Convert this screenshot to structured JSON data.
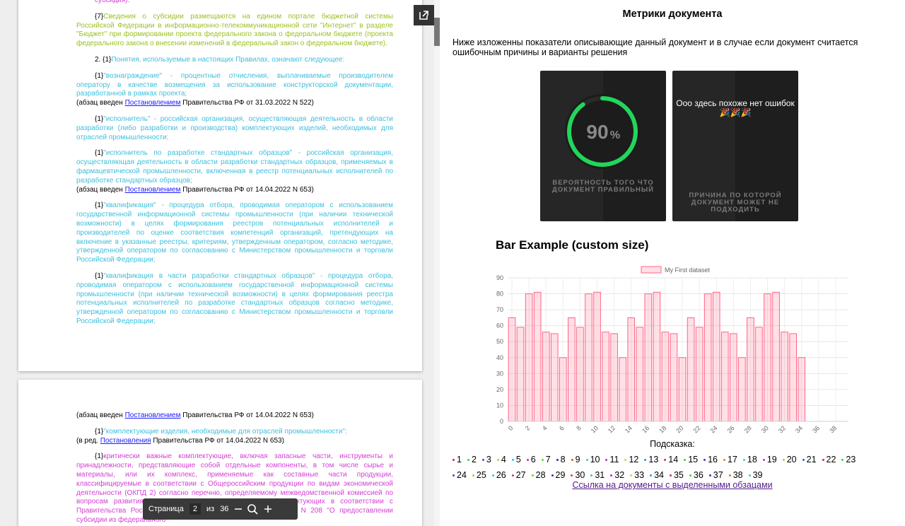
{
  "viewer": {
    "toolbar": {
      "page_label": "Страница",
      "page": "2",
      "of": "из",
      "total": "36"
    },
    "pages": [
      {
        "blocks": [
          {
            "prefix": "",
            "text": "субсидия).",
            "color": "#d43fd4"
          },
          {
            "prefix": "{7}",
            "text": "Сведения о субсидии размещаются на едином портале бюджетной системы Российской Федерации в информационно-телекоммуникационной сети \"Интернет\" в разделе \"Бюджет\" при формировании проекта федерального закона о федеральном бюджете (проекта федерального закона о внесении изменений в федеральный закон о федеральном бюджете).",
            "color": "#98c21f"
          },
          {
            "prefix": "2. {1}",
            "text": "Понятия, используемые в настоящих Правилах, означают следующее:",
            "color": "#3cbfdc"
          },
          {
            "prefix": "{1}",
            "text": "\"вознаграждение\" - процентные отчисления, выплачиваемые производителем оператору в качестве возмещения за использование конструкторской документации, разработанной в рамках проекта;",
            "color": "#3cbfdc"
          },
          {
            "note": [
              "(абзац введен ",
              "Постановлением",
              " Правительства РФ от 31.03.2022 N 522)"
            ]
          },
          {
            "prefix": "{1}",
            "text": "\"исполнитель\" - российская организация, осуществляющая деятельность в области разработки (либо разработки и производства) комплектующих изделий, необходимых для отраслей промышленности;",
            "color": "#3cbfdc"
          },
          {
            "prefix": "{1}",
            "text": "\"исполнитель по разработке стандартных образцов\" - российская организация, осуществляющая деятельность в области разработки стандартных образцов, применяемых в фармацевтической промышленности, включенная в реестр потенциальных исполнителей по разработке стандартных образцов;",
            "color": "#3cbfdc"
          },
          {
            "note": [
              "(абзац введен ",
              "Постановлением",
              " Правительства РФ от 14.04.2022 N 653)"
            ]
          },
          {
            "prefix": "{1}",
            "text": "\"квалификация\" - процедура отбора, проводимая оператором с использованием государственной информационной системы промышленности (при наличии технической возможности) в целях формирования реестров потенциальных исполнителей и производителей по оценке соответствия компетенций организаций, претендующих на включение в указанные реестры, критериям, утвержденным оператором, согласно методике, утвержденной оператором по согласованию с Министерством промышленности и торговли Российской Федерации;",
            "color": "#3cbfdc"
          },
          {
            "prefix": "{1}",
            "text": "\"квалификация в части разработки стандартных образцов\" - процедура отбора, проводимая оператором с использованием государственной информационной системы промышленности (при наличии технической возможности) в целях формирования реестра потенциальных исполнителей по разработке стандартных образцов согласно методике, утвержденной оператором по согласованию с Министерством промышленности и торговли Российской Федерации;",
            "color": "#3cbfdc"
          }
        ]
      },
      {
        "blocks": [
          {
            "note": [
              "(абзац введен ",
              "Постановлением",
              " Правительства РФ от 14.04.2022 N 653)"
            ]
          },
          {
            "prefix": "{1}",
            "text": "\"комплектующие изделия, необходимые для отраслей промышленности\":",
            "color": "#3cbfdc"
          },
          {
            "note": [
              "(в ред. ",
              "Постановления",
              " Правительства РФ от 14.04.2022 N 653)"
            ]
          },
          {
            "prefix": "{1}",
            "text": "критически важные комплектующие, включая запасные части, инструменты и принадлежности, представляющие собой отдельные компоненты, в том числе сырье и материалы, или их комплекс, применяемые как составные части продукции, классифицируемые в соответствии с Общероссийским продукции по видам экономической деятельности (ОКПД 2) согласно перечню, определяемому межведомственной комиссией по вопросам развития производства критически важных комплектующих в соответствии с Правительства Российской Федерации от 18 февраля 2022 г. N 208 \"О предоставлении субсидии из федерального",
            "color": "#d43fd4"
          }
        ]
      }
    ]
  },
  "metrics": {
    "title": "Метрики документа",
    "description": "Ниже изложенны показатели описывающие данный документ и в случае если документ считается ошибочным причины и варианты решения",
    "gauge": {
      "value": 90,
      "unit": "%",
      "caption": "ВЕРОЯТНОСТЬ ТОГО ЧТО ДОКУМЕНТ ПРАВИЛЬНЫЙ",
      "color": "#22d65a"
    },
    "errors_card": {
      "message": "Ооо здесь похоже нет ошибок 🎉🎉🎉",
      "caption": "ПРИЧИНА ПО КОТОРОЙ ДОКУМЕНТ МОЖЕТ НЕ ПОДХОДИТЬ"
    }
  },
  "chart_data": {
    "type": "bar",
    "title": "Bar Example (custom size)",
    "categories": [
      0,
      null,
      2,
      null,
      4,
      null,
      6,
      null,
      8,
      null,
      10,
      null,
      12,
      null,
      14,
      null,
      16,
      null,
      18,
      null,
      20,
      null,
      22,
      null,
      24,
      null,
      26,
      null,
      28,
      null,
      30,
      null,
      32,
      null,
      34,
      null,
      36,
      null,
      38,
      null
    ],
    "series": [
      {
        "name": "My First dataset",
        "color": "#ff6384",
        "values": [
          65,
          59,
          80,
          81,
          56,
          55,
          40,
          65,
          59,
          80,
          81,
          56,
          55,
          40,
          65,
          59,
          80,
          81,
          56,
          55,
          40,
          65,
          59,
          80,
          81,
          56,
          55,
          40,
          65,
          59,
          80,
          81,
          56,
          55,
          40,
          null,
          null,
          null,
          null,
          null
        ]
      }
    ],
    "ylim": [
      0,
      90
    ],
    "yticks": [
      0,
      10,
      20,
      30,
      40,
      50,
      60,
      70,
      80,
      90
    ],
    "grid": true,
    "legend": "top"
  },
  "hints": {
    "label": "Подсказка:",
    "items": [
      "1",
      "2",
      "3",
      "4",
      "5",
      "6",
      "7",
      "8",
      "9",
      "10",
      "11",
      "12",
      "13",
      "14",
      "15",
      "16",
      "17",
      "18",
      "19",
      "20",
      "21",
      "22",
      "23",
      "24",
      "25",
      "26",
      "27",
      "28",
      "29",
      "30",
      "31",
      "32",
      "33",
      "34",
      "35",
      "36",
      "37",
      "38",
      "39"
    ]
  },
  "link": "Ссылка на документы с выделенными обзацами"
}
